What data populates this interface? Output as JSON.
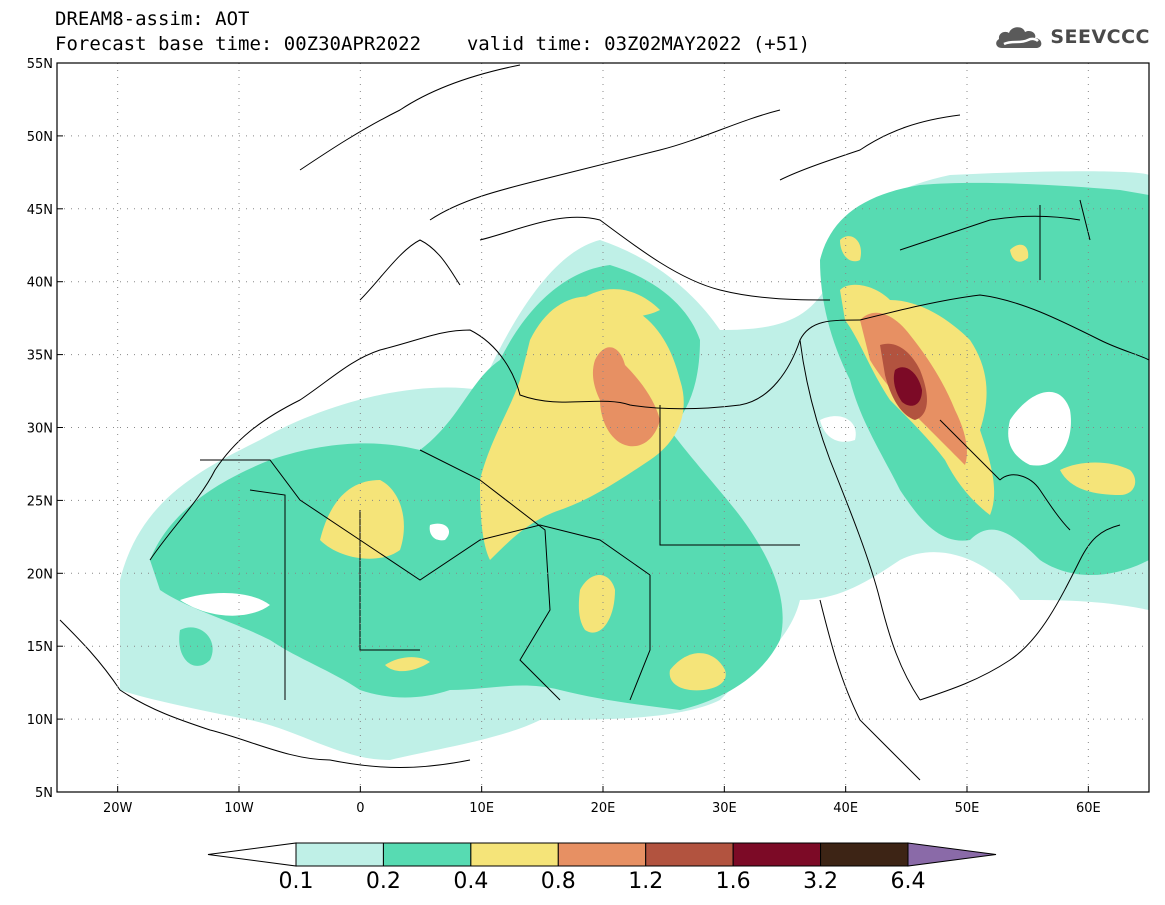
{
  "header": {
    "title": "DREAM8-assim: AOT",
    "base_time_label": "Forecast base time:",
    "base_time": "00Z30APR2022",
    "valid_time_label": "valid time:",
    "valid_time": "03Z02MAY2022 (+51)"
  },
  "logo": {
    "text": "SEEVCCC",
    "icon": "cloud-icon",
    "color": "#4a4a4a"
  },
  "map": {
    "lat_labels": [
      "55N",
      "50N",
      "45N",
      "40N",
      "35N",
      "30N",
      "25N",
      "20N",
      "15N",
      "10N",
      "5N"
    ],
    "lon_labels": [
      "20W",
      "10W",
      "0",
      "10E",
      "20E",
      "30E",
      "40E",
      "50E",
      "60E"
    ],
    "lon_range": [
      -25,
      65
    ],
    "lat_range": [
      5,
      55
    ],
    "gridlines": "dotted"
  },
  "colorbar": {
    "labels": [
      "0.1",
      "0.2",
      "0.4",
      "0.8",
      "1.2",
      "1.6",
      "3.2",
      "6.4"
    ],
    "colors": [
      "#ffffff",
      "#bff0e7",
      "#57dbb2",
      "#f5e479",
      "#e79063",
      "#b2533f",
      "#7c0a26",
      "#3d2415",
      "#8a6aa8"
    ]
  }
}
